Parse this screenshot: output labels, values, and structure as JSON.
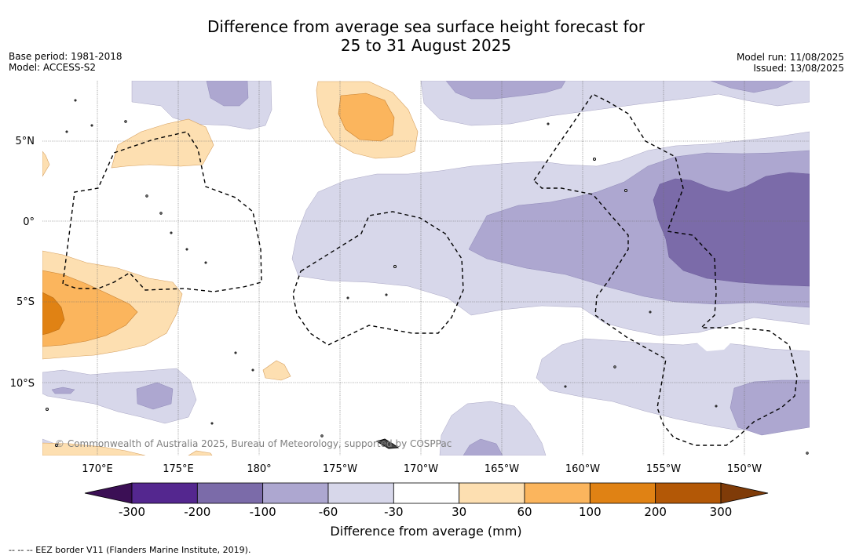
{
  "title": {
    "line1": "Difference from average sea surface height forecast for",
    "line2": "25 to 31 August 2025"
  },
  "meta_left": {
    "base_period": "Base period: 1981-2018",
    "model": "Model: ACCESS-S2"
  },
  "meta_right": {
    "model_run": "Model run: 11/08/2025",
    "issued": "Issued: 13/08/2025"
  },
  "copyright": "© Commonwealth of Australia 2025, Bureau of Meteorology, supported by COSPPac",
  "map_axes": {
    "lat_labels": [
      "5°N",
      "0°",
      "5°S",
      "10°S"
    ],
    "lon_labels": [
      "170°E",
      "175°E",
      "180°",
      "175°W",
      "170°W",
      "165°W",
      "160°W",
      "155°W",
      "150°W"
    ]
  },
  "colorbar": {
    "title": "Difference from average (mm)",
    "tick_labels": [
      "-300",
      "-200",
      "-100",
      "-60",
      "-30",
      "30",
      "60",
      "100",
      "200",
      "300"
    ],
    "colors": {
      "below_min": "#3b0f55",
      "bins": [
        "#54278f",
        "#7b6ba9",
        "#ada7d0",
        "#d7d7ea",
        "#ffffff",
        "#fddfb1",
        "#fbb55d",
        "#e08214",
        "#b35806"
      ],
      "above_max": "#7f3b08"
    }
  },
  "footnote": "--  --  -- EEZ border V11 (Flanders Marine Institute, 2019)."
}
